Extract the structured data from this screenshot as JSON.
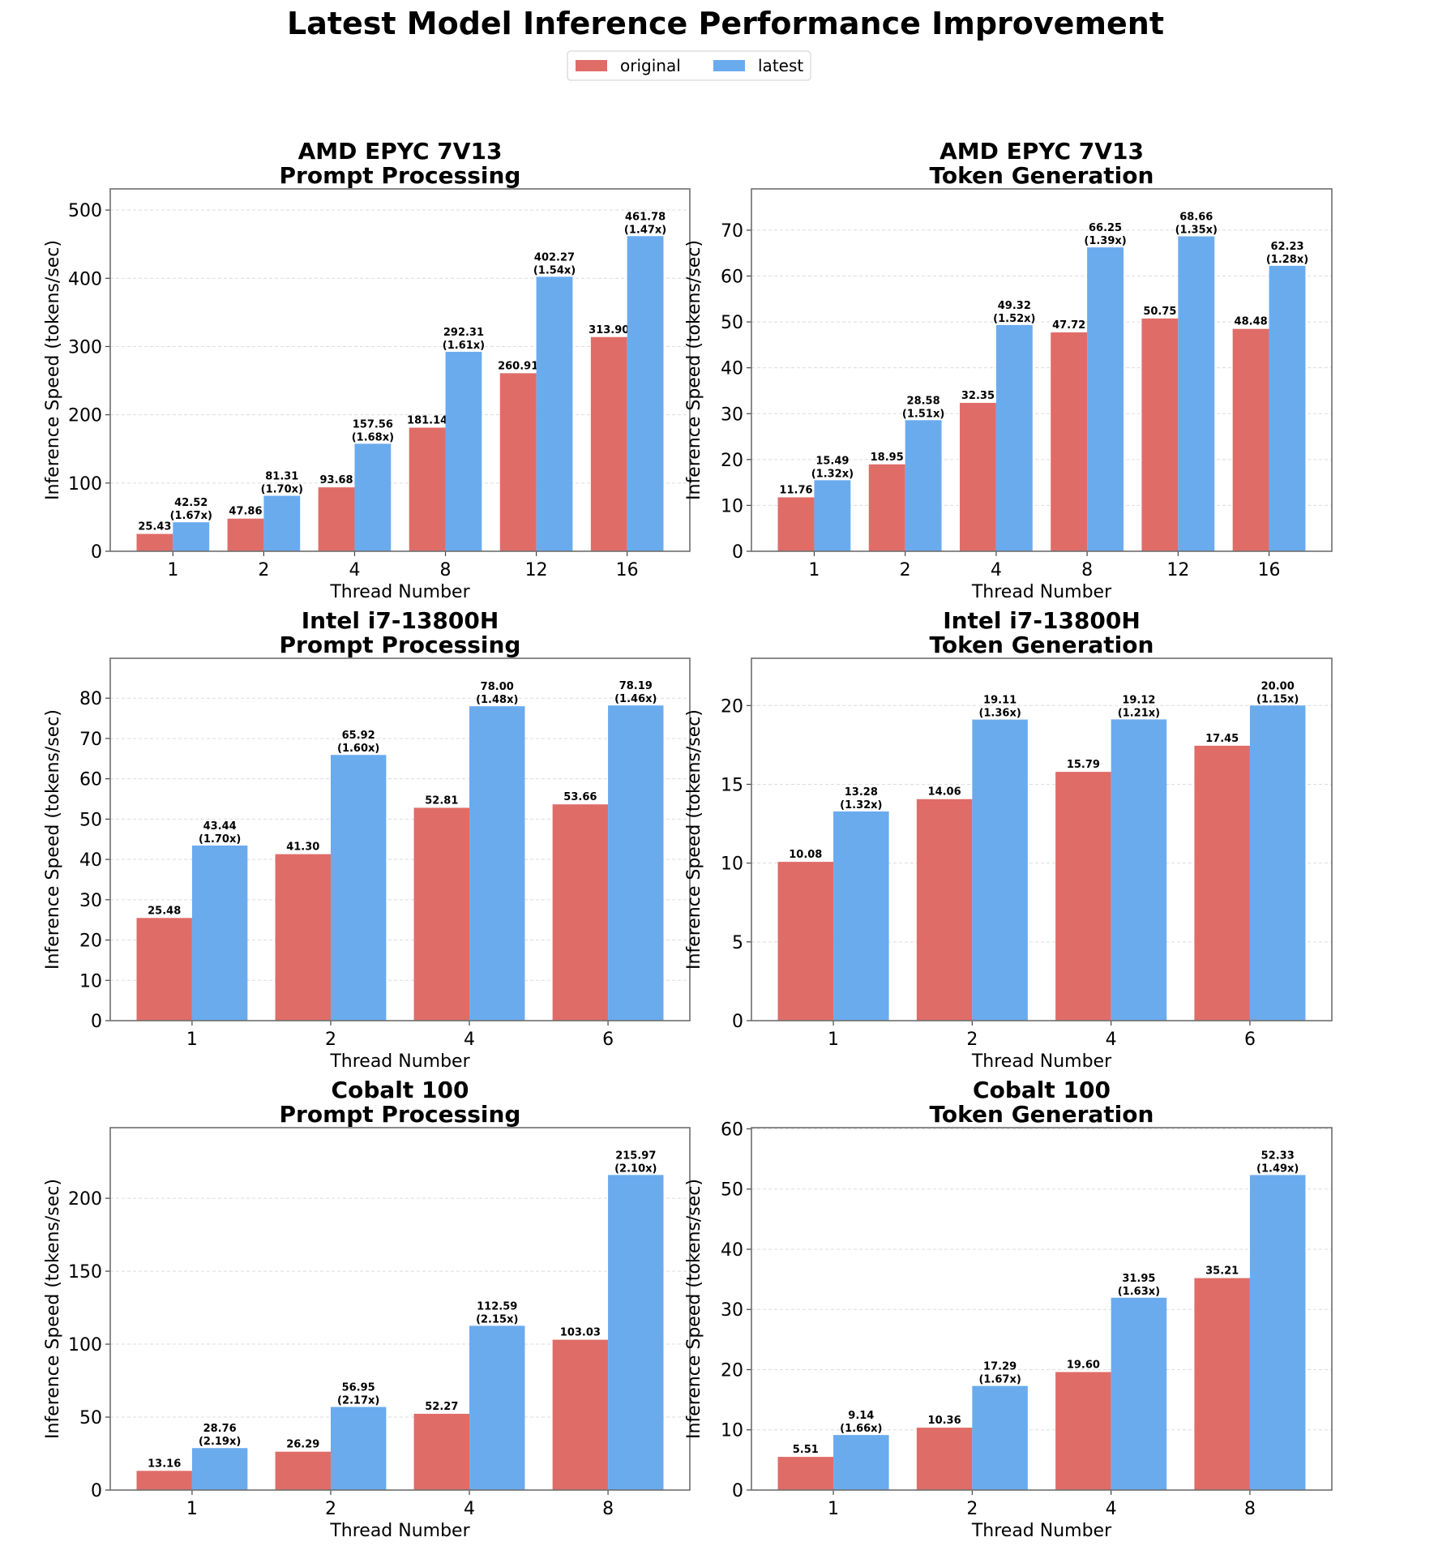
{
  "figure": {
    "title": "Latest Model Inference Performance Improvement",
    "legend": [
      {
        "label": "original",
        "color": "#e06c67"
      },
      {
        "label": "latest",
        "color": "#6aabee"
      }
    ]
  },
  "chart_data": [
    {
      "type": "bar",
      "title": [
        "AMD EPYC 7V13",
        "Prompt Processing"
      ],
      "xlabel": "Thread Number",
      "ylabel": "Inference Speed (tokens/sec)",
      "categories": [
        "1",
        "2",
        "4",
        "8",
        "12",
        "16"
      ],
      "series": [
        {
          "name": "original",
          "values": [
            25.43,
            47.86,
            93.68,
            181.14,
            260.91,
            313.9
          ]
        },
        {
          "name": "latest",
          "values": [
            42.52,
            81.31,
            157.56,
            292.31,
            402.27,
            461.78
          ]
        }
      ],
      "value_labels": {
        "original": [
          "25.43",
          "47.86",
          "93.68",
          "181.14",
          "260.91",
          "313.90"
        ],
        "latest": [
          "42.52",
          "81.31",
          "157.56",
          "292.31",
          "402.27",
          "461.78"
        ]
      },
      "speedup_labels": [
        "(1.67x)",
        "(1.70x)",
        "(1.68x)",
        "(1.61x)",
        "(1.54x)",
        "(1.47x)"
      ],
      "yticks": [
        0,
        100,
        200,
        300,
        400,
        500
      ],
      "ylim": [
        0,
        531
      ],
      "grid": true,
      "legend_position": "top-center (figure)"
    },
    {
      "type": "bar",
      "title": [
        "AMD EPYC 7V13",
        "Token Generation"
      ],
      "xlabel": "Thread Number",
      "ylabel": "Inference Speed (tokens/sec)",
      "categories": [
        "1",
        "2",
        "4",
        "8",
        "12",
        "16"
      ],
      "series": [
        {
          "name": "original",
          "values": [
            11.76,
            18.95,
            32.35,
            47.72,
            50.75,
            48.48
          ]
        },
        {
          "name": "latest",
          "values": [
            15.49,
            28.58,
            49.32,
            66.25,
            68.66,
            62.23
          ]
        }
      ],
      "value_labels": {
        "original": [
          "11.76",
          "18.95",
          "32.35",
          "47.72",
          "50.75",
          "48.48"
        ],
        "latest": [
          "15.49",
          "28.58",
          "49.32",
          "66.25",
          "68.66",
          "62.23"
        ]
      },
      "speedup_labels": [
        "(1.32x)",
        "(1.51x)",
        "(1.52x)",
        "(1.39x)",
        "(1.35x)",
        "(1.28x)"
      ],
      "yticks": [
        0,
        10,
        20,
        30,
        40,
        50,
        60,
        70
      ],
      "ylim": [
        0,
        79
      ],
      "grid": true
    },
    {
      "type": "bar",
      "title": [
        "Intel i7-13800H",
        "Prompt Processing"
      ],
      "xlabel": "Thread Number",
      "ylabel": "Inference Speed (tokens/sec)",
      "categories": [
        "1",
        "2",
        "4",
        "6"
      ],
      "series": [
        {
          "name": "original",
          "values": [
            25.48,
            41.3,
            52.81,
            53.66
          ]
        },
        {
          "name": "latest",
          "values": [
            43.44,
            65.92,
            78.0,
            78.19
          ]
        }
      ],
      "value_labels": {
        "original": [
          "25.48",
          "41.30",
          "52.81",
          "53.66"
        ],
        "latest": [
          "43.44",
          "65.92",
          "78.00",
          "78.19"
        ]
      },
      "speedup_labels": [
        "(1.70x)",
        "(1.60x)",
        "(1.48x)",
        "(1.46x)"
      ],
      "yticks": [
        0,
        10,
        20,
        30,
        40,
        50,
        60,
        70,
        80
      ],
      "ylim": [
        0,
        89.9
      ],
      "grid": true
    },
    {
      "type": "bar",
      "title": [
        "Intel i7-13800H",
        "Token Generation"
      ],
      "xlabel": "Thread Number",
      "ylabel": "Inference Speed (tokens/sec)",
      "categories": [
        "1",
        "2",
        "4",
        "6"
      ],
      "series": [
        {
          "name": "original",
          "values": [
            10.08,
            14.06,
            15.79,
            17.45
          ]
        },
        {
          "name": "latest",
          "values": [
            13.28,
            19.11,
            19.12,
            20.0
          ]
        }
      ],
      "value_labels": {
        "original": [
          "10.08",
          "14.06",
          "15.79",
          "17.45"
        ],
        "latest": [
          "13.28",
          "19.11",
          "19.12",
          "20.00"
        ]
      },
      "speedup_labels": [
        "(1.32x)",
        "(1.36x)",
        "(1.21x)",
        "(1.15x)"
      ],
      "yticks": [
        0,
        5,
        10,
        15,
        20
      ],
      "ylim": [
        0,
        23
      ],
      "grid": true
    },
    {
      "type": "bar",
      "title": [
        "Cobalt 100",
        "Prompt Processing"
      ],
      "xlabel": "Thread Number",
      "ylabel": "Inference Speed (tokens/sec)",
      "categories": [
        "1",
        "2",
        "4",
        "8"
      ],
      "series": [
        {
          "name": "original",
          "values": [
            13.16,
            26.29,
            52.27,
            103.03
          ]
        },
        {
          "name": "latest",
          "values": [
            28.76,
            56.95,
            112.59,
            215.97
          ]
        }
      ],
      "value_labels": {
        "original": [
          "13.16",
          "26.29",
          "52.27",
          "103.03"
        ],
        "latest": [
          "28.76",
          "56.95",
          "112.59",
          "215.97"
        ]
      },
      "speedup_labels": [
        "(2.19x)",
        "(2.17x)",
        "(2.15x)",
        "(2.10x)"
      ],
      "yticks": [
        0,
        50,
        100,
        150,
        200
      ],
      "ylim": [
        0,
        248.4
      ],
      "grid": true
    },
    {
      "type": "bar",
      "title": [
        "Cobalt 100",
        "Token Generation"
      ],
      "xlabel": "Thread Number",
      "ylabel": "Inference Speed (tokens/sec)",
      "categories": [
        "1",
        "2",
        "4",
        "8"
      ],
      "series": [
        {
          "name": "original",
          "values": [
            5.51,
            10.36,
            19.6,
            35.21
          ]
        },
        {
          "name": "latest",
          "values": [
            9.14,
            17.29,
            31.95,
            52.33
          ]
        }
      ],
      "value_labels": {
        "original": [
          "5.51",
          "10.36",
          "19.60",
          "35.21"
        ],
        "latest": [
          "9.14",
          "17.29",
          "31.95",
          "52.33"
        ]
      },
      "speedup_labels": [
        "(1.66x)",
        "(1.67x)",
        "(1.63x)",
        "(1.49x)"
      ],
      "yticks": [
        0,
        10,
        20,
        30,
        40,
        50,
        60
      ],
      "ylim": [
        0,
        60.2
      ],
      "grid": true
    }
  ]
}
